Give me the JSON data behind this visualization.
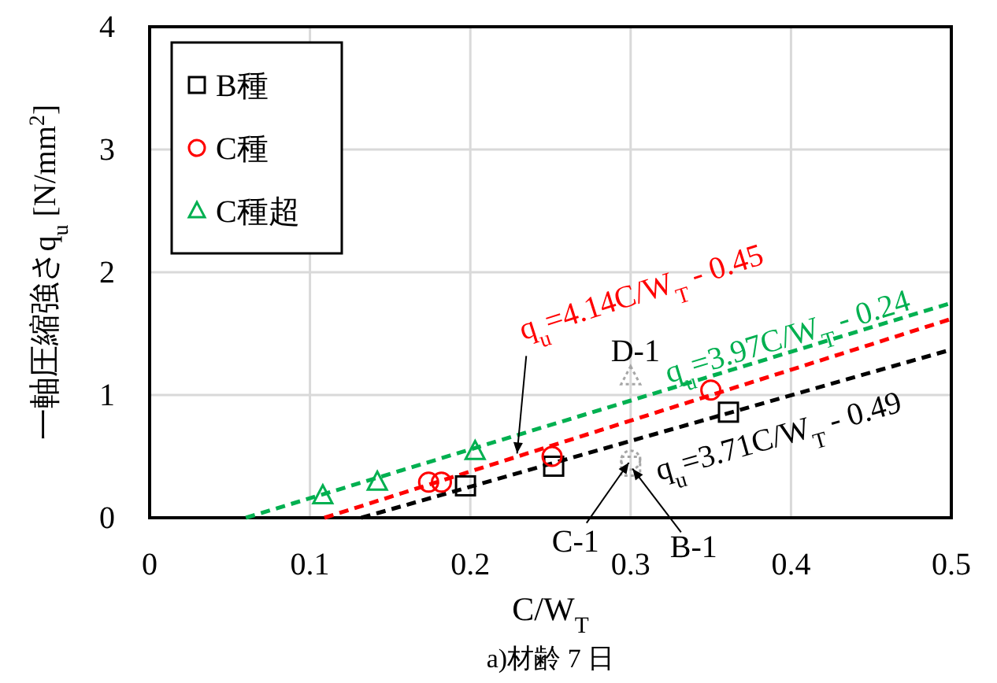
{
  "chart_data": {
    "type": "scatter",
    "title": "a)材齢 7 日",
    "xlabel": "C/W$_{T}$",
    "ylabel": "一軸圧縮強さq$_{u}$ [N/mm$^{2}$]",
    "xlim": [
      0,
      0.5
    ],
    "ylim": [
      0,
      4
    ],
    "xticks": [
      0,
      0.1,
      0.2,
      0.3,
      0.4,
      0.5
    ],
    "yticks": [
      0,
      1,
      2,
      3,
      4
    ],
    "grid": true,
    "legend": "top left",
    "series": [
      {
        "name": "B種",
        "color": "#000000",
        "marker": "square",
        "x": [
          0.197,
          0.252,
          0.361
        ],
        "values": [
          0.26,
          0.42,
          0.86
        ]
      },
      {
        "name": "C種",
        "color": "#ff0000",
        "marker": "circle",
        "x": [
          0.174,
          0.182,
          0.251,
          0.35
        ],
        "values": [
          0.29,
          0.29,
          0.5,
          1.04
        ]
      },
      {
        "name": "C種超",
        "color": "#00b050",
        "marker": "triangle",
        "x": [
          0.108,
          0.142,
          0.203
        ],
        "values": [
          0.18,
          0.29,
          0.54
        ]
      },
      {
        "type": "scatter",
        "color": "#a6a6a6",
        "marker": "triangle",
        "line_style": "dotted",
        "x": [
          0.3
        ],
        "values": [
          1.15
        ]
      },
      {
        "type": "scatter",
        "color": "#a6a6a6",
        "marker": "circle",
        "line_style": "dotted",
        "x": [
          0.3
        ],
        "values": [
          0.47
        ]
      },
      {
        "type": "scatter",
        "color": "#a6a6a6",
        "marker": "square",
        "line_style": "dotted",
        "x": [
          0.3
        ],
        "values": [
          0.42
        ]
      },
      {
        "type": "line",
        "color": "#000000",
        "marker": "none",
        "line_style": "dashed",
        "x": [
          0.132,
          0.5
        ],
        "values": [
          0,
          1.37
        ]
      },
      {
        "type": "line",
        "color": "#ff0000",
        "marker": "none",
        "line_style": "dashed",
        "x": [
          0.109,
          0.5
        ],
        "values": [
          0,
          1.62
        ]
      },
      {
        "type": "line",
        "color": "#00b050",
        "marker": "none",
        "line_style": "dashed",
        "x": [
          0.06,
          0.5
        ],
        "values": [
          0,
          1.75
        ]
      }
    ],
    "annotations": [
      {
        "text": "q$_{u}$=4.14C/W$_{T}$ - 0.45",
        "x": 0.229,
        "y": 0.498
      },
      {
        "text": "q$_{u}$=3.97C/W$_{T}$ - 0.24",
        "x": 0.314,
        "y": 1.007
      },
      {
        "text": "q$_{u}$=3.71C/W$_{T}$ - 0.49",
        "x": 0.3,
        "y": 0.623
      },
      {
        "text": "D-1",
        "x": 0.3,
        "y": 1.15
      },
      {
        "text": "C-1",
        "x": 0.3,
        "y": 0.47
      },
      {
        "text": "B-1",
        "x": 0.3,
        "y": 0.42
      }
    ]
  }
}
